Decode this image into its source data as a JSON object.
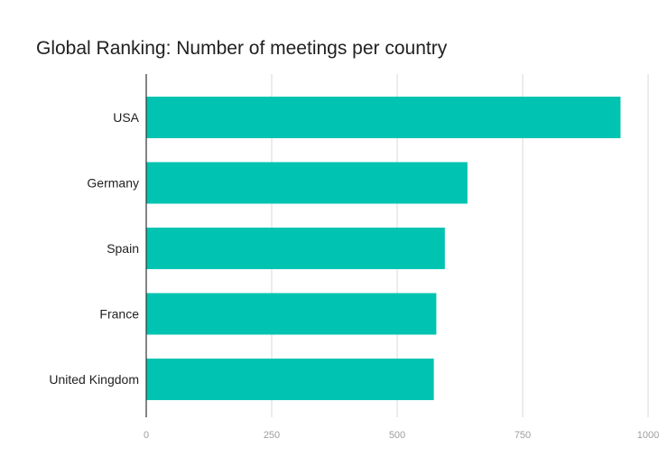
{
  "chart_data": {
    "type": "bar",
    "orientation": "horizontal",
    "title": "Global Ranking: Number of meetings per country",
    "categories": [
      "USA",
      "Germany",
      "Spain",
      "France",
      "United Kingdom"
    ],
    "values": [
      945,
      640,
      595,
      578,
      573
    ],
    "xlabel": "",
    "ylabel": "",
    "xlim": [
      0,
      1000
    ],
    "xticks": [
      "0",
      "250",
      "500",
      "750",
      "1000"
    ],
    "grid": "vertical",
    "legend": "none",
    "colors": {
      "bar": "#00c4b1",
      "grid": "#d9d9d9",
      "axis": "#333333"
    }
  }
}
